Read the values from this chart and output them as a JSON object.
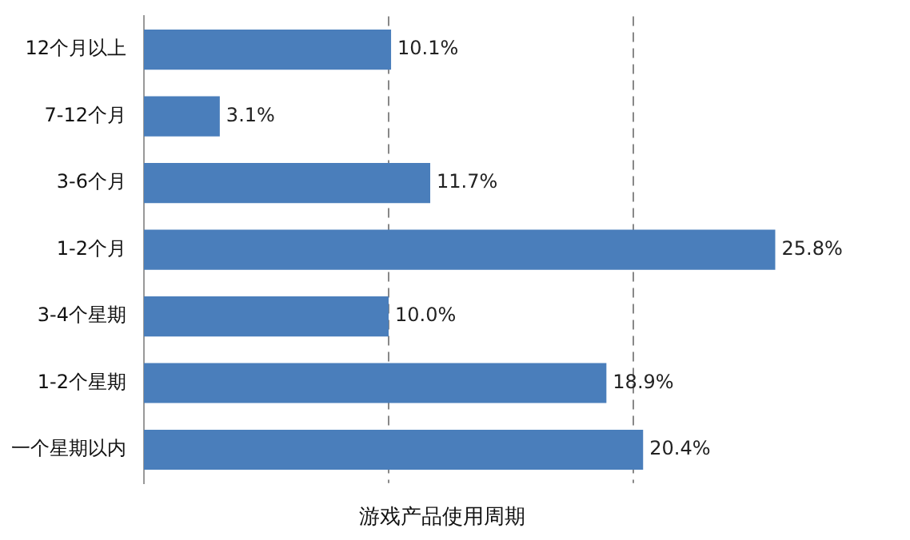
{
  "chart_data": {
    "type": "bar",
    "orientation": "horizontal",
    "title": "游戏产品使用周期",
    "categories": [
      "12个月以上",
      "7-12个月",
      "3-6个月",
      "1-2个月",
      "3-4个星期",
      "1-2个星期",
      "一个星期以内"
    ],
    "values": [
      10.1,
      3.1,
      11.7,
      25.8,
      10.0,
      18.9,
      20.4
    ],
    "value_labels": [
      "10.1%",
      "3.1%",
      "11.7%",
      "25.8%",
      "10.0%",
      "18.9%",
      "20.4%"
    ],
    "color": "#4a7ebb",
    "ref_lines": [
      {
        "axis": "x",
        "value": 10,
        "label": null,
        "color": "#888888",
        "line_style": "dashed"
      },
      {
        "axis": "x",
        "value": 20,
        "label": null,
        "color": "#888888",
        "line_style": "dashed"
      }
    ],
    "tick_labels": "y",
    "legend": false
  }
}
